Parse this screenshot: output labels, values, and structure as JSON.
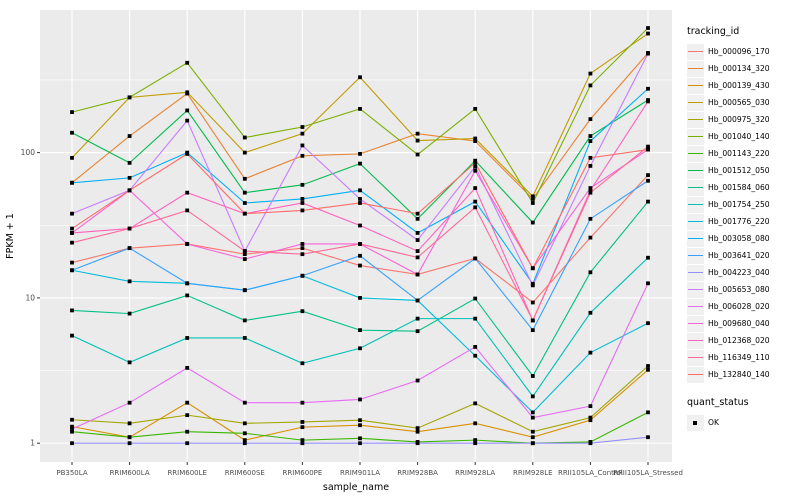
{
  "figure": {
    "background": "#ffffff",
    "panel_background": "#ebebeb",
    "gridline_color": "#ffffff",
    "tick_text_color": "#4d4d4d",
    "point_color": "#000000"
  },
  "legend": {
    "tracking_title": "tracking_id",
    "quant_title": "quant_status",
    "quant_value": "OK"
  },
  "chart_data": {
    "type": "line",
    "title": "",
    "xlabel": "sample_name",
    "ylabel": "FPKM + 1",
    "y_scale": "log10",
    "ylim": [
      1,
      950
    ],
    "y_ticks": [
      "1",
      "10",
      "100"
    ],
    "grid": true,
    "legend_position": "right",
    "point_marker": "filled-black-square",
    "quant_status": "OK",
    "categories": [
      "PB350LA",
      "RRIM600LA",
      "RRIM600LE",
      "RRIM600SE",
      "RRIM600PE",
      "RRIM901LA",
      "RRIM928BA",
      "RRIM928LA",
      "RRIM928LE",
      "RRII105LA_Control",
      "RRII105LA_Stressed"
    ],
    "series": [
      {
        "name": "Hb_000096_170",
        "color": "#F8766D",
        "values": [
          17.5,
          22,
          23.5,
          20,
          22,
          16.7,
          14.5,
          18.7,
          9.3,
          26,
          70
        ]
      },
      {
        "name": "Hb_000134_320",
        "color": "#EA8331",
        "values": [
          62,
          130,
          255,
          66,
          95,
          98,
          135,
          120,
          48,
          170,
          485
        ]
      },
      {
        "name": "Hb_000139_430",
        "color": "#D89000",
        "values": [
          1.3,
          1.1,
          1.9,
          1.05,
          1.29,
          1.33,
          1.2,
          1.37,
          1.1,
          1.44,
          3.2
        ]
      },
      {
        "name": "Hb_000565_030",
        "color": "#C09B00",
        "values": [
          92,
          240,
          260,
          100,
          135,
          330,
          121,
          125,
          50,
          350,
          660
        ]
      },
      {
        "name": "Hb_000975_320",
        "color": "#A3A500",
        "values": [
          1.45,
          1.37,
          1.56,
          1.37,
          1.4,
          1.44,
          1.27,
          1.88,
          1.2,
          1.5,
          3.4
        ]
      },
      {
        "name": "Hb_001040_140",
        "color": "#7CAE00",
        "values": [
          190,
          240,
          415,
          127,
          150,
          200,
          97,
          200,
          45,
          290,
          720
        ]
      },
      {
        "name": "Hb_001143_220",
        "color": "#39B600",
        "values": [
          1.2,
          1.1,
          1.2,
          1.17,
          1.05,
          1.08,
          1.02,
          1.05,
          1.0,
          1.02,
          1.63
        ]
      },
      {
        "name": "Hb_001512_050",
        "color": "#00BB4E",
        "values": [
          137,
          85,
          195,
          53,
          60,
          84,
          35,
          88,
          33,
          130,
          230
        ]
      },
      {
        "name": "Hb_001584_060",
        "color": "#00C087",
        "values": [
          8.2,
          7.8,
          10.4,
          7.0,
          8.1,
          6.0,
          5.9,
          9.9,
          2.9,
          15,
          46
        ]
      },
      {
        "name": "Hb_001754_250",
        "color": "#00C0B8",
        "values": [
          5.5,
          3.6,
          5.3,
          5.3,
          3.55,
          4.5,
          7.2,
          7.2,
          2.1,
          7.9,
          18.9
        ]
      },
      {
        "name": "Hb_001776_220",
        "color": "#00BCD8",
        "values": [
          15.5,
          13,
          12.6,
          11.3,
          14.2,
          10,
          9.6,
          4.0,
          1.63,
          4.2,
          6.7
        ]
      },
      {
        "name": "Hb_003058_080",
        "color": "#00B0F6",
        "values": [
          62,
          67,
          100,
          45,
          48,
          55,
          28,
          46,
          12.5,
          120,
          275
        ]
      },
      {
        "name": "Hb_003641_020",
        "color": "#35A2FF",
        "values": [
          15.5,
          22,
          12.6,
          11.3,
          14.2,
          19.5,
          9.6,
          18.7,
          6.0,
          35,
          64
        ]
      },
      {
        "name": "Hb_004223_040",
        "color": "#9590FF",
        "values": [
          1.0,
          1.0,
          1.0,
          1.0,
          1.0,
          1.0,
          1.0,
          1.0,
          1.0,
          1.0,
          1.1
        ]
      },
      {
        "name": "Hb_005653_080",
        "color": "#C77CFF",
        "values": [
          38,
          55,
          166,
          21,
          112,
          48,
          25,
          80,
          12.2,
          81,
          480
        ]
      },
      {
        "name": "Hb_006028_020",
        "color": "#E76BF3",
        "values": [
          1.25,
          1.9,
          3.3,
          1.9,
          1.9,
          2.0,
          2.7,
          4.6,
          1.5,
          1.8,
          12.6
        ]
      },
      {
        "name": "Hb_009680_040",
        "color": "#FA62DB",
        "values": [
          28,
          55,
          23.5,
          18.5,
          23.5,
          23.5,
          14.5,
          75,
          16,
          57,
          105
        ]
      },
      {
        "name": "Hb_012368_020",
        "color": "#FF62BC",
        "values": [
          28,
          30,
          53,
          38,
          45,
          31.5,
          21,
          57,
          7.0,
          55,
          225
        ]
      },
      {
        "name": "Hb_116349_110",
        "color": "#FF6A98",
        "values": [
          24,
          30,
          40,
          21,
          20,
          23.5,
          19,
          42,
          7.0,
          53,
          110
        ]
      },
      {
        "name": "Hb_132840_140",
        "color": "#FF6C67",
        "values": [
          30,
          55,
          98,
          38,
          40,
          45,
          38,
          85,
          16,
          92,
          105
        ]
      }
    ]
  }
}
